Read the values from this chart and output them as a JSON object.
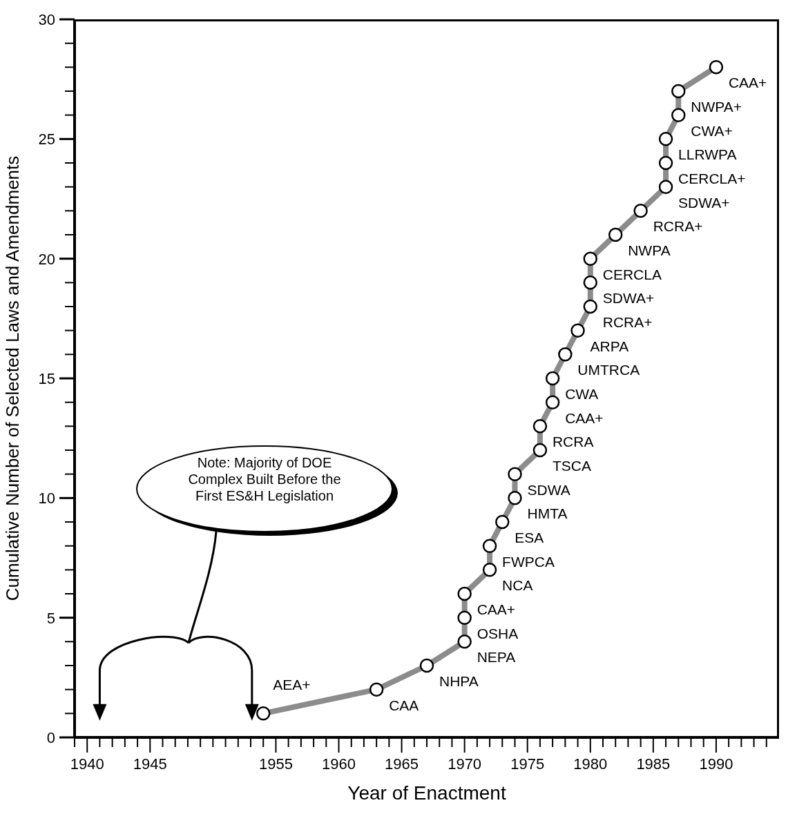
{
  "chart_data": {
    "type": "line",
    "xlabel": "Year of Enactment",
    "ylabel": "Cumulative Number of Selected Laws and Amendments",
    "x": [
      1954,
      1963,
      1967,
      1970,
      1970,
      1970,
      1972,
      1972,
      1973,
      1974,
      1974,
      1976,
      1976,
      1977,
      1977,
      1978,
      1979,
      1980,
      1980,
      1980,
      1982,
      1984,
      1986,
      1986,
      1986,
      1987,
      1987,
      1990
    ],
    "series": [
      {
        "color": "#8c8c8c",
        "values": [
          1,
          2,
          3,
          4,
          5,
          6,
          7,
          8,
          9,
          10,
          11,
          12,
          13,
          14,
          15,
          16,
          17,
          18,
          19,
          20,
          21,
          22,
          23,
          24,
          25,
          26,
          27,
          28
        ]
      }
    ],
    "xlim": [
      1939,
      1995
    ],
    "xticks": [
      {
        "value": 1939,
        "label": null
      },
      1940,
      {
        "value": 1941,
        "label": null
      },
      {
        "value": 1942,
        "label": null
      },
      {
        "value": 1943,
        "label": null
      },
      {
        "value": 1944,
        "label": null
      },
      1945,
      {
        "value": 1946,
        "label": null
      },
      {
        "value": 1947,
        "label": null
      },
      {
        "value": 1948,
        "label": null
      },
      {
        "value": 1949,
        "label": null
      },
      {
        "value": 1950,
        "label": null
      },
      {
        "value": 1951,
        "label": null
      },
      {
        "value": 1952,
        "label": null
      },
      {
        "value": 1953,
        "label": null
      },
      {
        "value": 1954,
        "label": null
      },
      1955,
      {
        "value": 1956,
        "label": null
      },
      {
        "value": 1957,
        "label": null
      },
      {
        "value": 1958,
        "label": null
      },
      {
        "value": 1959,
        "label": null
      },
      1960,
      {
        "value": 1961,
        "label": null
      },
      {
        "value": 1962,
        "label": null
      },
      {
        "value": 1963,
        "label": null
      },
      {
        "value": 1964,
        "label": null
      },
      1965,
      {
        "value": 1966,
        "label": null
      },
      {
        "value": 1967,
        "label": null
      },
      {
        "value": 1968,
        "label": null
      },
      {
        "value": 1969,
        "label": null
      },
      1970,
      {
        "value": 1971,
        "label": null
      },
      {
        "value": 1972,
        "label": null
      },
      {
        "value": 1973,
        "label": null
      },
      {
        "value": 1974,
        "label": null
      },
      1975,
      {
        "value": 1976,
        "label": null
      },
      {
        "value": 1977,
        "label": null
      },
      {
        "value": 1978,
        "label": null
      },
      {
        "value": 1979,
        "label": null
      },
      1980,
      {
        "value": 1981,
        "label": null
      },
      {
        "value": 1982,
        "label": null
      },
      {
        "value": 1983,
        "label": null
      },
      {
        "value": 1984,
        "label": null
      },
      1985,
      {
        "value": 1986,
        "label": null
      },
      {
        "value": 1987,
        "label": null
      },
      {
        "value": 1988,
        "label": null
      },
      {
        "value": 1989,
        "label": null
      },
      1990,
      {
        "value": 1991,
        "label": null
      },
      {
        "value": 1992,
        "label": null
      },
      {
        "value": 1993,
        "label": null
      },
      {
        "value": 1994,
        "label": null
      }
    ],
    "ylim": [
      0,
      30
    ],
    "yticks": [
      0,
      {
        "value": 1,
        "label": null
      },
      {
        "value": 2,
        "label": null
      },
      {
        "value": 3,
        "label": null
      },
      {
        "value": 4,
        "label": null
      },
      5,
      {
        "value": 6,
        "label": null
      },
      {
        "value": 7,
        "label": null
      },
      {
        "value": 8,
        "label": null
      },
      {
        "value": 9,
        "label": null
      },
      10,
      {
        "value": 11,
        "label": null
      },
      {
        "value": 12,
        "label": null
      },
      {
        "value": 13,
        "label": null
      },
      {
        "value": 14,
        "label": null
      },
      15,
      {
        "value": 16,
        "label": null
      },
      {
        "value": 17,
        "label": null
      },
      {
        "value": 18,
        "label": null
      },
      {
        "value": 19,
        "label": null
      },
      20,
      {
        "value": 21,
        "label": null
      },
      {
        "value": 22,
        "label": null
      },
      {
        "value": 23,
        "label": null
      },
      {
        "value": 24,
        "label": null
      },
      25,
      {
        "value": 26,
        "label": null
      },
      {
        "value": 27,
        "label": null
      },
      {
        "value": 28,
        "label": null
      },
      {
        "value": 29,
        "label": null
      },
      30
    ],
    "grid": false,
    "legend": false,
    "marker": "circle",
    "line_style": "solid",
    "annotations": [
      {
        "text": "AEA+",
        "x": 1954,
        "y": 1
      },
      {
        "text": "CAA",
        "x": 1963,
        "y": 2
      },
      {
        "text": "NHPA",
        "x": 1967,
        "y": 3
      },
      {
        "text": "NEPA",
        "x": 1970,
        "y": 4
      },
      {
        "text": "OSHA",
        "x": 1970,
        "y": 5
      },
      {
        "text": "CAA+",
        "x": 1970,
        "y": 6
      },
      {
        "text": "NCA",
        "x": 1972,
        "y": 7
      },
      {
        "text": "FWPCA",
        "x": 1972,
        "y": 8
      },
      {
        "text": "ESA",
        "x": 1973,
        "y": 9
      },
      {
        "text": "HMTA",
        "x": 1974,
        "y": 10
      },
      {
        "text": "SDWA",
        "x": 1974,
        "y": 11
      },
      {
        "text": "TSCA",
        "x": 1976,
        "y": 12
      },
      {
        "text": "RCRA",
        "x": 1976,
        "y": 13
      },
      {
        "text": "CAA+",
        "x": 1977,
        "y": 14
      },
      {
        "text": "CWA",
        "x": 1977,
        "y": 15
      },
      {
        "text": "UMTRCA",
        "x": 1978,
        "y": 16
      },
      {
        "text": "ARPA",
        "x": 1979,
        "y": 17
      },
      {
        "text": "RCRA+",
        "x": 1980,
        "y": 18
      },
      {
        "text": "SDWA+",
        "x": 1980,
        "y": 19
      },
      {
        "text": "CERCLA",
        "x": 1980,
        "y": 20
      },
      {
        "text": "NWPA",
        "x": 1982,
        "y": 21
      },
      {
        "text": "RCRA+",
        "x": 1984,
        "y": 22
      },
      {
        "text": "SDWA+",
        "x": 1986,
        "y": 23
      },
      {
        "text": "CERCLA+",
        "x": 1986,
        "y": 24
      },
      {
        "text": "LLRWPA",
        "x": 1986,
        "y": 25
      },
      {
        "text": "CWA+",
        "x": 1987,
        "y": 26
      },
      {
        "text": "NWPA+",
        "x": 1987,
        "y": 27
      },
      {
        "text": "CAA+",
        "x": 1990,
        "y": 28
      },
      "Note:  Majority of DOE Complex Built Before the First ES&H Legislation"
    ]
  }
}
